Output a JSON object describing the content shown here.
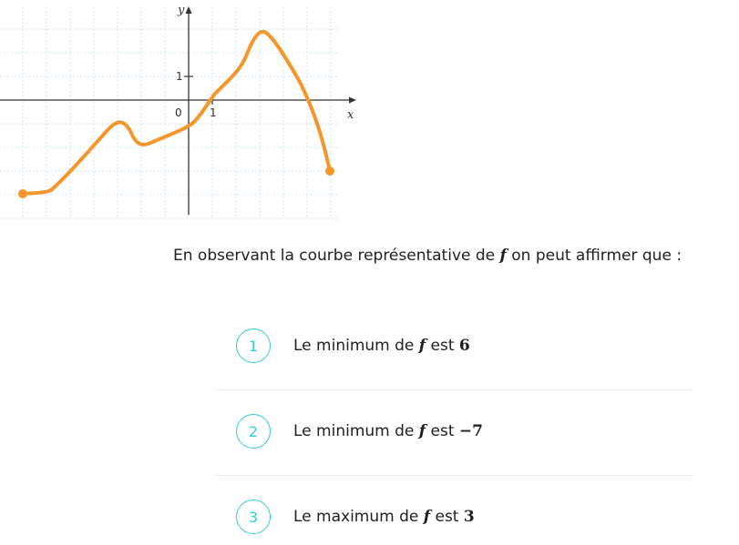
{
  "graph": {
    "y_label": "y",
    "x_label": "x",
    "origin_label": "0",
    "x_tick_label": "1",
    "y_tick_label": "1",
    "curve_color": "#f5962b"
  },
  "question": {
    "prefix": "En observant la courbe représentative de ",
    "var": "f",
    "suffix": " on peut affirmer que :"
  },
  "options": [
    {
      "number": "1",
      "prefix": "Le minimum de ",
      "var": "f",
      "middle": " est ",
      "value": "6"
    },
    {
      "number": "2",
      "prefix": "Le minimum de ",
      "var": "f",
      "middle": " est ",
      "value": "−7"
    },
    {
      "number": "3",
      "prefix": "Le maximum de ",
      "var": "f",
      "middle": " est ",
      "value": "3"
    }
  ],
  "colors": {
    "accent": "#35c6e0",
    "curve": "#f5962b"
  }
}
